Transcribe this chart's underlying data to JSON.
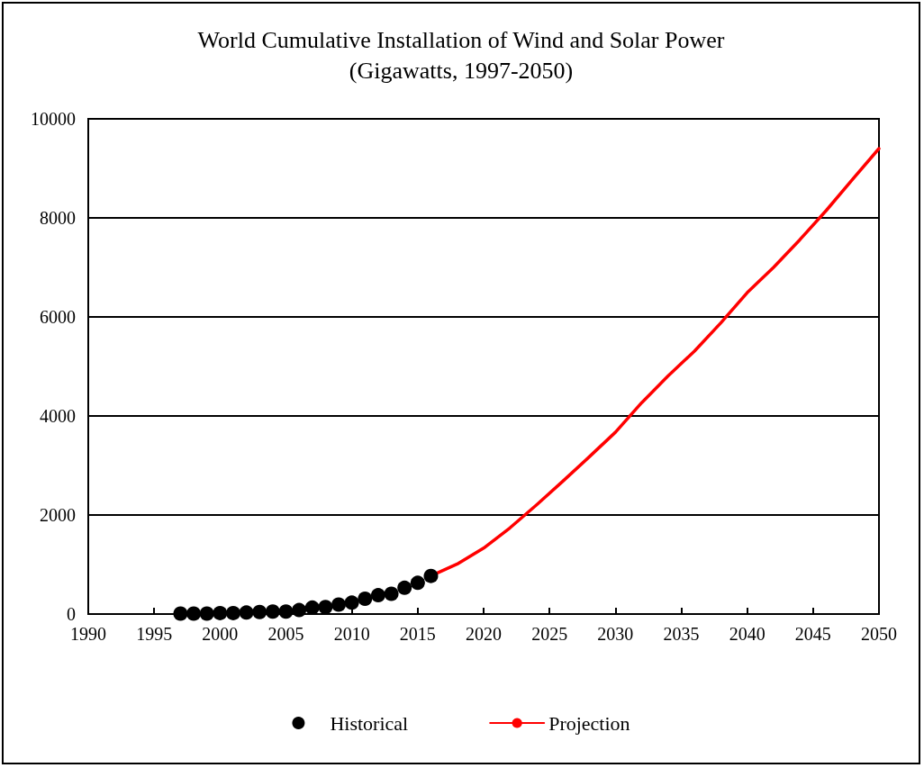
{
  "chart_data": {
    "type": "line",
    "title": "World Cumulative Installation of Wind and Solar Power",
    "subtitle": "(Gigawatts, 1997-2050)",
    "series": [
      {
        "name": "Historical",
        "type": "scatter",
        "color": "#000000",
        "marker": "circle",
        "x": [
          1997,
          1998,
          1999,
          2000,
          2001,
          2002,
          2003,
          2004,
          2005,
          2006,
          2007,
          2008,
          2009,
          2010,
          2011,
          2012,
          2013,
          2014,
          2015,
          2016
        ],
        "values": [
          10,
          10,
          10,
          20,
          20,
          30,
          40,
          50,
          50,
          80,
          130,
          140,
          190,
          230,
          310,
          380,
          410,
          530,
          630,
          770
        ]
      },
      {
        "name": "Projection",
        "color": "#ff0000",
        "marker": "none",
        "line_style": "solid",
        "x": [
          2016,
          2018,
          2020,
          2022,
          2024,
          2026,
          2028,
          2030,
          2032,
          2034,
          2036,
          2038,
          2040,
          2042,
          2044,
          2046,
          2048,
          2050
        ],
        "values": [
          770,
          1010,
          1330,
          1740,
          2200,
          2680,
          3170,
          3670,
          4270,
          4810,
          5310,
          5880,
          6490,
          7000,
          7560,
          8150,
          8780,
          9400
        ]
      }
    ],
    "xlim": [
      1990,
      2050
    ],
    "xticks": [
      1990,
      1995,
      2000,
      2005,
      2010,
      2015,
      2020,
      2025,
      2030,
      2035,
      2040,
      2045,
      2050
    ],
    "ylim": [
      0,
      10000
    ],
    "yticks": [
      0,
      2000,
      4000,
      6000,
      8000,
      10000
    ],
    "grid": "y",
    "legend": "bottom"
  }
}
